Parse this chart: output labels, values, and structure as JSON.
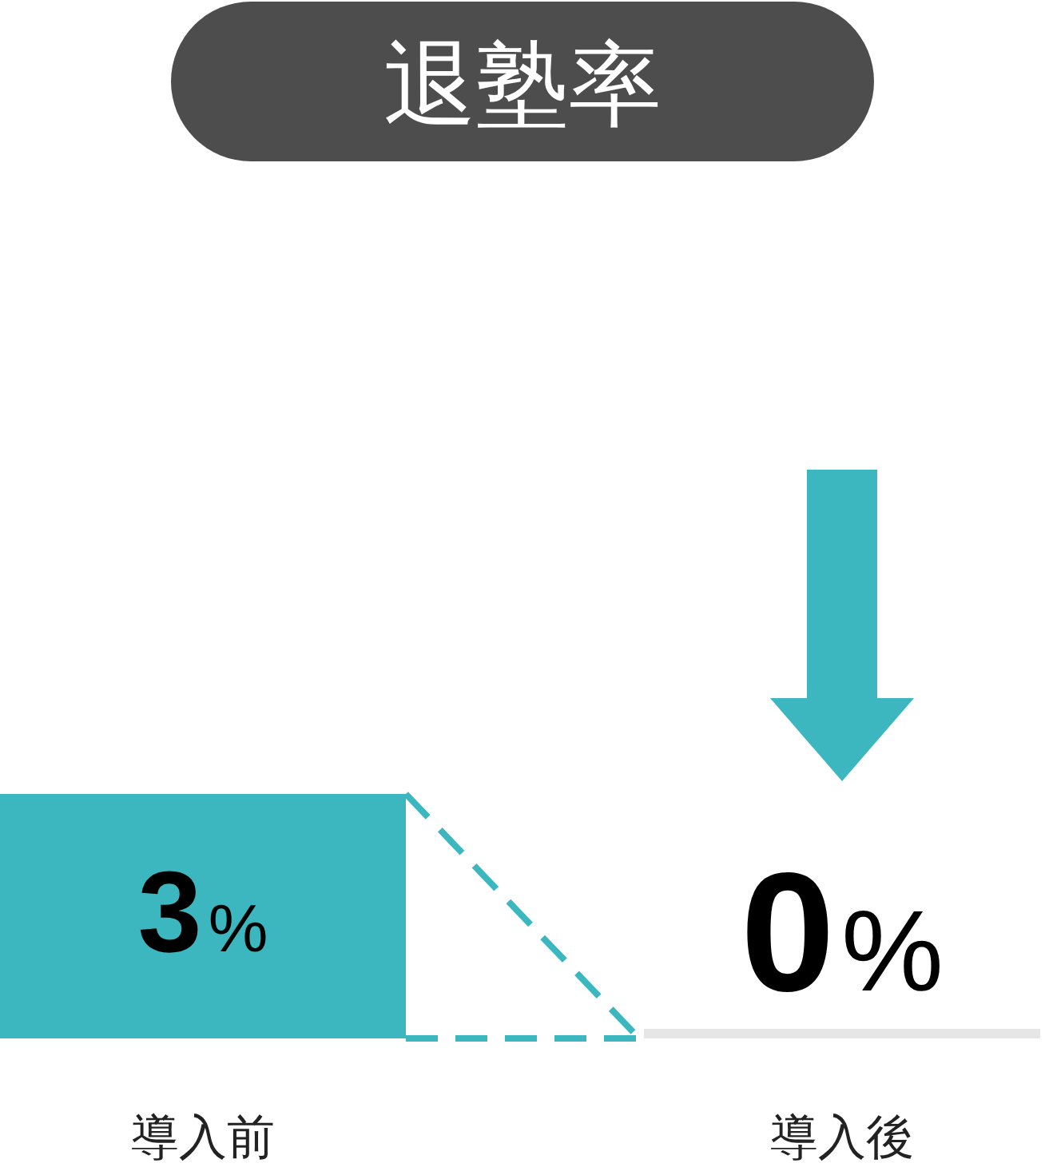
{
  "chart_data": {
    "type": "bar",
    "title": "退塾率",
    "categories": [
      "導入前",
      "導入後"
    ],
    "values": [
      3,
      0
    ],
    "colors": [
      "#3cb7bf",
      "#e6e6e6"
    ],
    "value_labels": [
      "3%",
      "0%"
    ]
  }
}
